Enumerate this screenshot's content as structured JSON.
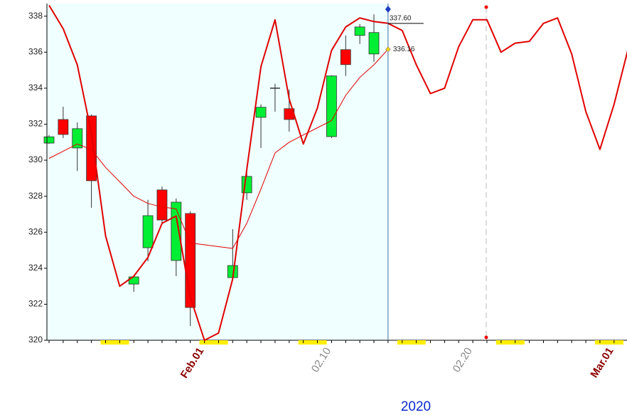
{
  "chart_data": {
    "type": "candlestick",
    "x_label": "2020",
    "categories": [
      null,
      null,
      null,
      null,
      null,
      null,
      null,
      null,
      null,
      null,
      null,
      "Feb.01",
      null,
      null,
      null,
      null,
      null,
      null,
      null,
      null,
      "02.10",
      null,
      null,
      null,
      null,
      null,
      null,
      null,
      null,
      null,
      "02.20",
      null,
      null,
      null,
      null,
      null,
      null,
      null,
      null,
      null,
      "Mar.01",
      null
    ],
    "open": [
      330.95,
      332.26,
      330.68,
      332.46,
      null,
      null,
      323.12,
      325.14,
      328.35,
      324.43,
      327.04,
      null,
      null,
      323.48,
      328.19,
      332.38,
      334.0,
      332.86,
      null,
      null,
      331.31,
      336.14,
      336.93,
      335.9,
      null,
      null,
      null,
      null,
      null,
      null,
      null,
      null,
      null,
      null,
      null,
      null,
      null,
      null,
      null,
      null,
      null,
      null
    ],
    "high": [
      331.4,
      332.97,
      332.1,
      332.54,
      null,
      null,
      323.56,
      327.8,
      328.54,
      327.87,
      327.16,
      null,
      null,
      326.17,
      329.41,
      333.1,
      334.24,
      333.92,
      null,
      null,
      334.72,
      336.93,
      337.56,
      338.1,
      null,
      null,
      null,
      null,
      null,
      null,
      null,
      null,
      null,
      null,
      null,
      null,
      null,
      null,
      null,
      null,
      null,
      null
    ],
    "low": [
      330.9,
      331.23,
      329.4,
      327.36,
      null,
      null,
      322.69,
      324.39,
      326.49,
      323.56,
      320.79,
      null,
      null,
      323.48,
      327.8,
      330.68,
      332.7,
      331.59,
      null,
      null,
      331.23,
      334.68,
      336.46,
      335.47,
      null,
      null,
      null,
      null,
      null,
      null,
      null,
      null,
      null,
      null,
      null,
      null,
      null,
      null,
      null,
      null,
      null,
      null
    ],
    "close": [
      331.3,
      331.43,
      331.75,
      328.86,
      null,
      null,
      323.52,
      326.92,
      326.68,
      327.67,
      321.82,
      null,
      null,
      324.15,
      329.1,
      332.94,
      334.0,
      332.26,
      null,
      null,
      334.68,
      335.31,
      337.4,
      337.09,
      null,
      null,
      null,
      null,
      null,
      null,
      null,
      null,
      null,
      null,
      null,
      null,
      null,
      null,
      null,
      null,
      null,
      null
    ],
    "up_color": "#00ee33",
    "down_color": "#ff0000",
    "lines": [
      {
        "color": "#e00000",
        "width": 2,
        "values": [
          338.6,
          337.3,
          335.3,
          331.5,
          325.8,
          323.0,
          323.56,
          324.6,
          326.5,
          326.9,
          322.4,
          320.0,
          320.4,
          323.4,
          329.5,
          335.2,
          337.8,
          333.4,
          330.9,
          332.9,
          336.1,
          337.4,
          337.9,
          337.7,
          337.6,
          337.2,
          335.3,
          333.7,
          334.0,
          336.3,
          337.8,
          337.8,
          336.0,
          336.5,
          336.6,
          337.6,
          337.9,
          335.9,
          332.7,
          330.6,
          333.1,
          336.2
        ]
      },
      {
        "color": "#e00000",
        "width": 1,
        "values": [
          330.1,
          330.5,
          330.9,
          330.6,
          329.6,
          328.8,
          328.0,
          327.6,
          327.4,
          327.3,
          325.4,
          325.3,
          325.2,
          325.1,
          326.5,
          328.4,
          330.4,
          331.0,
          331.4,
          331.8,
          332.2,
          333.6,
          334.6,
          335.3,
          336.16,
          null,
          null,
          null,
          null,
          null,
          null,
          null,
          null,
          null,
          null,
          null,
          null,
          null,
          null,
          null,
          null,
          null
        ]
      }
    ],
    "annotations": [
      {
        "value": 337.6,
        "label": "337.60"
      },
      {
        "value": 336.16,
        "label": "336.16"
      }
    ],
    "ylim": [
      320,
      338.7
    ],
    "yticks": [
      320,
      322,
      324,
      326,
      328,
      330,
      332,
      334,
      336,
      338
    ]
  }
}
